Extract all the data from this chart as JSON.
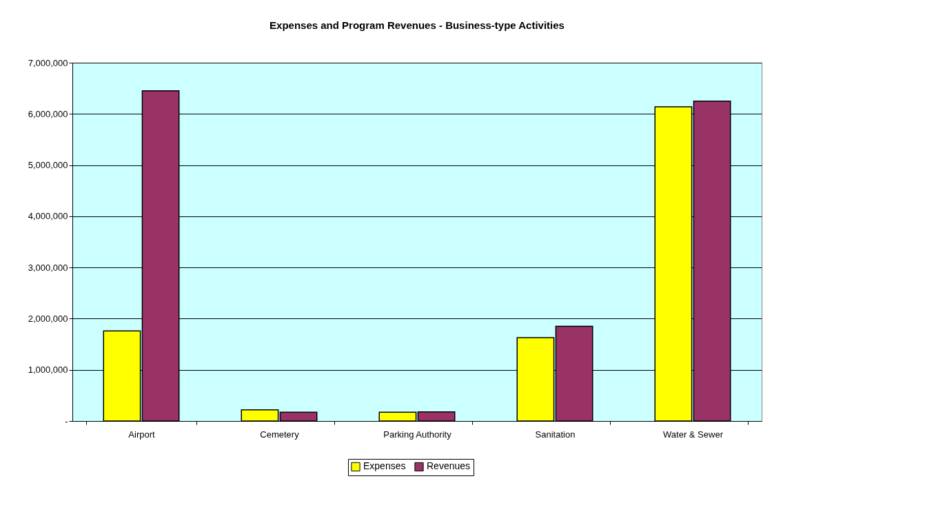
{
  "chart_data": {
    "type": "bar",
    "title": "Expenses and Program Revenues - Business-type Activities",
    "categories": [
      "Airport",
      "Cemetery",
      "Parking Authority",
      "Sanitation",
      "Water & Sewer"
    ],
    "series": [
      {
        "name": "Expenses",
        "color": "#ffff00",
        "values": [
          1760000,
          220000,
          170000,
          1630000,
          6140000
        ]
      },
      {
        "name": "Revenues",
        "color": "#993366",
        "values": [
          6450000,
          170000,
          180000,
          1850000,
          6250000
        ]
      }
    ],
    "ylim": [
      0,
      7000000
    ],
    "yticks": [
      {
        "value": 0,
        "label": "-"
      },
      {
        "value": 1000000,
        "label": "1,000,000"
      },
      {
        "value": 2000000,
        "label": "2,000,000"
      },
      {
        "value": 3000000,
        "label": "3,000,000"
      },
      {
        "value": 4000000,
        "label": "4,000,000"
      },
      {
        "value": 5000000,
        "label": "5,000,000"
      },
      {
        "value": 6000000,
        "label": "6,000,000"
      },
      {
        "value": 7000000,
        "label": "7,000,000"
      }
    ],
    "grid": "y",
    "legend": "bottom"
  }
}
